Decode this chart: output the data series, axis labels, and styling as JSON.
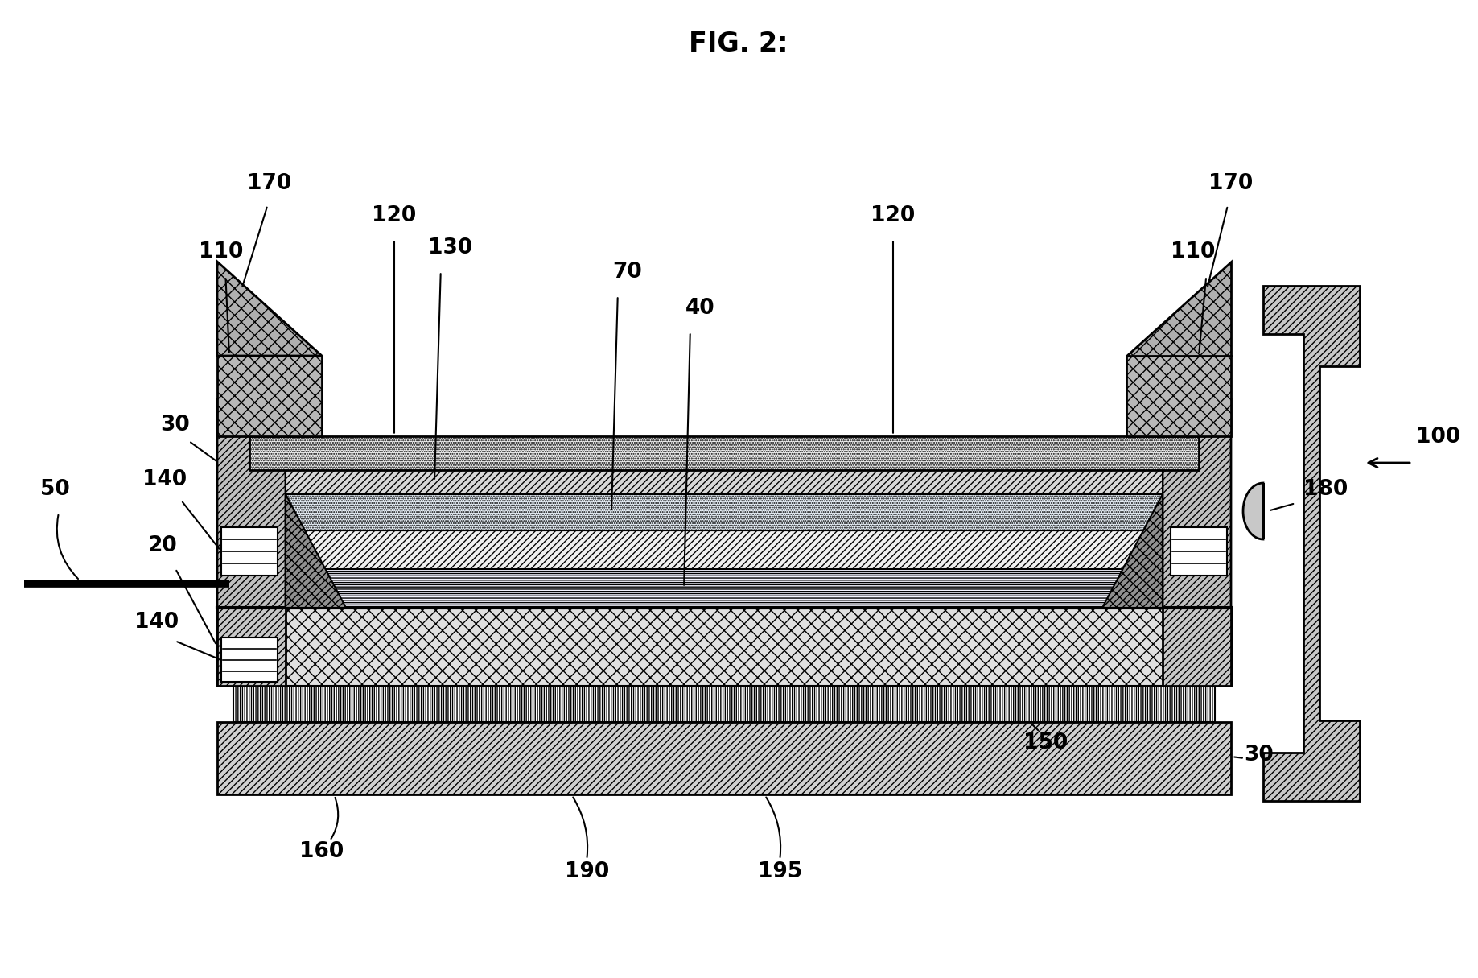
{
  "title": "FIG. 2:",
  "bg_color": "#ffffff",
  "line_color": "#000000",
  "title_fontsize": 24,
  "label_fontsize": 19,
  "labels": {
    "170_left": "170",
    "110_left": "110",
    "120_left": "120",
    "130": "130",
    "70": "70",
    "40": "40",
    "120_right": "120",
    "170_right": "170",
    "110_right": "110",
    "100": "100",
    "50": "50",
    "30_left": "30",
    "140_top": "140",
    "180": "180",
    "20": "20",
    "140_bot": "140",
    "150": "150",
    "30_right": "30",
    "160": "160",
    "190": "190",
    "195": "195"
  }
}
